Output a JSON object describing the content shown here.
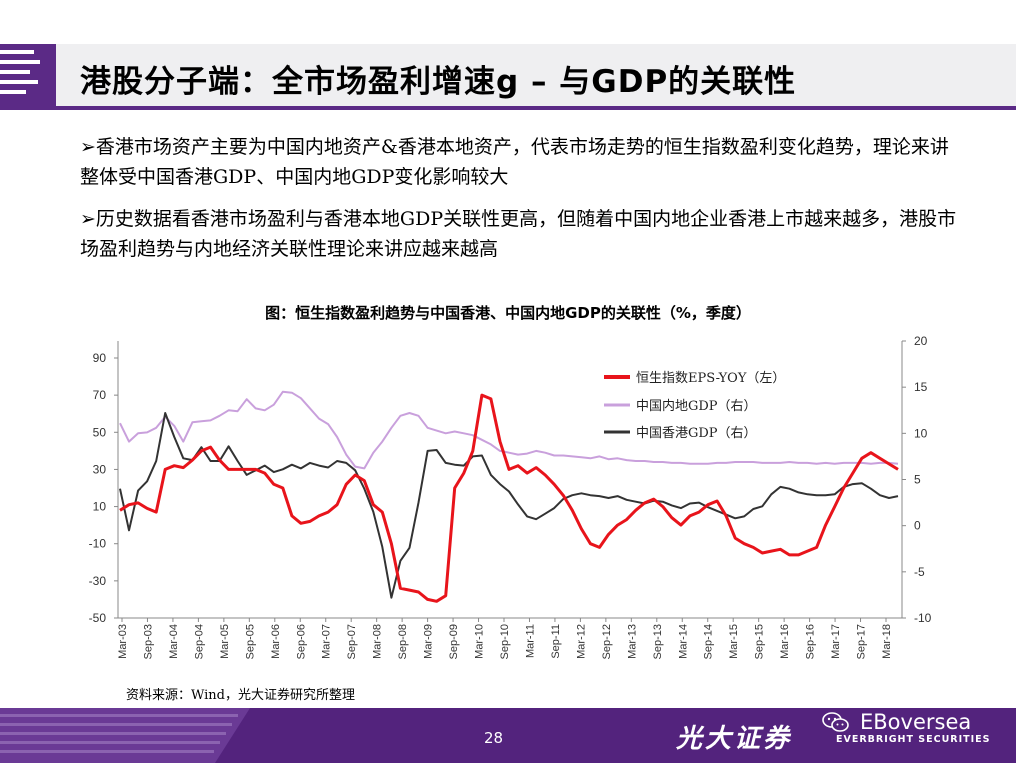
{
  "header": {
    "title": "港股分子端：全市场盈利增速g – 与GDP的关联性"
  },
  "bullets": [
    "➢香港市场资产主要为中国内地资产&香港本地资产，代表市场走势的恒生指数盈利变化趋势，理论来讲整体受中国香港GDP、中国内地GDP变化影响较大",
    "➢历史数据看香港市场盈利与香港本地GDP关联性更高，但随着中国内地企业香港上市越来越多，港股市场盈利趋势与内地经济关联性理论来讲应越来越高"
  ],
  "chart_title": "图：恒生指数盈利趋势与中国香港、中国内地GDP的关联性（%，季度）",
  "source": "资料来源：Wind，光大证券研究所整理",
  "footer": {
    "page_number": "28",
    "brand_cn": "光大证券",
    "brand_en": "EBoversea",
    "brand_en_sub": "EVERBRIGHT SECURITIES"
  },
  "chart_data": {
    "type": "line",
    "x_labels": [
      "Mar-03",
      "Sep-03",
      "Mar-04",
      "Sep-04",
      "Mar-05",
      "Sep-05",
      "Mar-06",
      "Sep-06",
      "Mar-07",
      "Sep-07",
      "Mar-08",
      "Sep-08",
      "Mar-09",
      "Sep-09",
      "Mar-10",
      "Sep-10",
      "Mar-11",
      "Sep-11",
      "Mar-12",
      "Sep-12",
      "Mar-13",
      "Sep-13",
      "Mar-14",
      "Sep-14",
      "Mar-15",
      "Sep-15",
      "Mar-16",
      "Sep-16",
      "Mar-17",
      "Sep-17",
      "Mar-18"
    ],
    "y_left": {
      "min": -50,
      "max": 90,
      "ticks": [
        90,
        70,
        50,
        30,
        10,
        -10,
        -30,
        -50
      ]
    },
    "y_right": {
      "min": -10,
      "max": 20,
      "ticks": [
        20,
        15,
        10,
        5,
        0,
        -5,
        -10
      ]
    },
    "legend_position": "top-right",
    "series": [
      {
        "name": "恒生指数EPS-YOY（左）",
        "axis": "left",
        "color": "#e8141b",
        "values": [
          8,
          11,
          12,
          9,
          7,
          30,
          32,
          31,
          35,
          40,
          42,
          35,
          30,
          30,
          30,
          30,
          28,
          22,
          20,
          5,
          1,
          2,
          5,
          7,
          11,
          22,
          27,
          24,
          11,
          7,
          -10,
          -34,
          -35,
          -36,
          -40,
          -41,
          -38,
          20,
          28,
          40,
          70,
          68,
          45,
          30,
          32,
          28,
          31,
          27,
          22,
          16,
          8,
          -2,
          -10,
          -12,
          -5,
          0,
          3,
          8,
          12,
          14,
          10,
          4,
          0,
          5,
          7,
          11,
          13,
          5,
          -7,
          -10,
          -12,
          -15,
          -14,
          -13,
          -16,
          -16,
          -14,
          -12,
          0,
          10,
          20,
          28,
          36,
          39,
          36,
          33,
          30
        ]
      },
      {
        "name": "中国内地GDP（右）",
        "axis": "right",
        "color": "#c9a0dc",
        "values": [
          11.1,
          9.1,
          10.0,
          10.1,
          10.6,
          11.8,
          10.8,
          9.1,
          11.2,
          11.3,
          11.4,
          11.9,
          12.5,
          12.4,
          13.7,
          12.7,
          12.5,
          13.1,
          14.5,
          14.4,
          13.8,
          12.7,
          11.6,
          11.0,
          9.6,
          7.7,
          6.4,
          6.2,
          7.9,
          9.1,
          10.6,
          11.9,
          12.2,
          11.9,
          10.6,
          10.3,
          10.0,
          10.2,
          10.0,
          9.8,
          9.3,
          8.8,
          8.1,
          7.9,
          7.7,
          7.8,
          8.1,
          7.9,
          7.6,
          7.6,
          7.5,
          7.4,
          7.3,
          7.5,
          7.2,
          7.3,
          7.1,
          7.0,
          7.0,
          6.9,
          6.9,
          6.8,
          6.8,
          6.7,
          6.7,
          6.7,
          6.8,
          6.8,
          6.9,
          6.9,
          6.9,
          6.8,
          6.8,
          6.8,
          6.9,
          6.8,
          6.8,
          6.7,
          6.8,
          6.7,
          6.8,
          6.8,
          6.8,
          6.7,
          6.8,
          6.8,
          6.7
        ]
      },
      {
        "name": "中国香港GDP（右）",
        "axis": "right",
        "color": "#333333",
        "values": [
          4.0,
          -0.5,
          3.8,
          4.8,
          7.0,
          12.2,
          9.6,
          7.3,
          7.1,
          8.5,
          7.0,
          7.0,
          8.6,
          7.0,
          5.5,
          6.0,
          6.5,
          5.8,
          6.1,
          6.6,
          6.2,
          6.8,
          6.5,
          6.3,
          7.0,
          6.8,
          6.0,
          4.0,
          1.5,
          -2.3,
          -7.8,
          -3.8,
          -2.4,
          2.5,
          8.1,
          8.2,
          6.8,
          6.6,
          6.5,
          7.5,
          7.6,
          5.5,
          4.5,
          3.7,
          2.3,
          1.0,
          0.7,
          1.3,
          1.9,
          2.9,
          3.3,
          3.5,
          3.3,
          3.2,
          3.0,
          3.2,
          2.8,
          2.6,
          2.4,
          2.7,
          2.6,
          2.2,
          1.9,
          2.4,
          2.5,
          2.0,
          1.6,
          1.2,
          0.8,
          1.0,
          1.8,
          2.1,
          3.4,
          4.2,
          4.0,
          3.6,
          3.4,
          3.3,
          3.3,
          3.4,
          4.2,
          4.5,
          4.6,
          4.0,
          3.3,
          3.0,
          3.2
        ]
      }
    ]
  }
}
